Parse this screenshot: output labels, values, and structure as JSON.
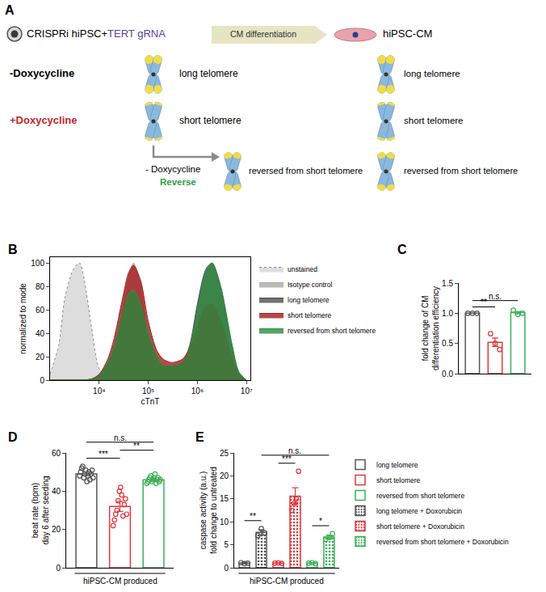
{
  "diagram": {
    "panel": "A",
    "header": {
      "cell": "CRISPRi hiPSC+",
      "grna": "TERT gRNA",
      "process": "CM differentiation",
      "product": "hiPSC-CM"
    },
    "rows": [
      {
        "condition": "-Doxycycline",
        "ipsc": "long telomere",
        "cm": "long telomere"
      },
      {
        "condition": "+Doxycycline",
        "ipsc": "short telomere",
        "cm": "short telomere"
      },
      {
        "condition": "- Doxycycline",
        "note": "Reverse",
        "ipsc": "reversed from short telomere",
        "cm": "reversed from short telomere"
      }
    ]
  },
  "chart_data": [
    {
      "panel": "B",
      "type": "area",
      "log": "x",
      "grid": false,
      "legend": "right",
      "x_label": "cTnT",
      "y_label": "normalized to mode",
      "x": [
        1000,
        1500,
        2000,
        3000,
        4000,
        5000,
        7000,
        10000,
        15000,
        20000,
        30000,
        40000,
        50000,
        70000,
        100000,
        150000,
        200000,
        300000,
        500000,
        700000,
        1000000,
        1500000,
        2000000,
        3000000,
        5000000,
        7000000,
        10000000
      ],
      "series": [
        {
          "name": "unstained",
          "color": "#d4d4d4",
          "line_style": "dotted",
          "values": [
            5,
            30,
            70,
            95,
            100,
            85,
            45,
            10,
            2,
            0,
            0,
            0,
            0,
            0,
            0,
            0,
            0,
            0,
            0,
            0,
            0,
            0,
            0,
            0,
            0,
            0,
            0
          ]
        },
        {
          "name": "Isotype control",
          "color": "#a9a9a9",
          "values": [
            0,
            0,
            0,
            0,
            0,
            0,
            0,
            2,
            10,
            25,
            60,
            88,
            100,
            80,
            35,
            8,
            2,
            0,
            0,
            0,
            0,
            0,
            0,
            0,
            0,
            0,
            0
          ]
        },
        {
          "name": "long telomere",
          "color": "#4d4d4d",
          "values": [
            0,
            0,
            0,
            0,
            0,
            0,
            1,
            4,
            14,
            27,
            55,
            72,
            75,
            63,
            38,
            18,
            12,
            12,
            15,
            30,
            65,
            95,
            100,
            78,
            30,
            6,
            0
          ]
        },
        {
          "name": "short telomere",
          "color": "#a81c1c",
          "values": [
            0,
            0,
            0,
            0,
            0,
            0,
            1,
            5,
            18,
            35,
            70,
            92,
            98,
            85,
            50,
            25,
            18,
            15,
            18,
            28,
            45,
            63,
            65,
            50,
            20,
            5,
            0
          ]
        },
        {
          "name": "reversed from short telomere",
          "color": "#2e8b40",
          "values": [
            0,
            0,
            0,
            0,
            0,
            0,
            1,
            4,
            15,
            28,
            57,
            74,
            77,
            65,
            40,
            20,
            13,
            12,
            15,
            28,
            60,
            92,
            100,
            80,
            32,
            7,
            0
          ]
        }
      ],
      "xlim": [
        1000,
        12000000
      ],
      "xticks": [
        {
          "value": 10000,
          "label": "10⁴"
        },
        {
          "value": 100000,
          "label": "10⁵"
        },
        {
          "value": 1000000,
          "label": "10⁶"
        },
        {
          "value": 10000000,
          "label": "10⁷"
        }
      ],
      "ylim": [
        0,
        105
      ],
      "yticks": [
        0,
        20,
        40,
        60,
        80,
        100
      ]
    },
    {
      "panel": "C",
      "type": "bar",
      "grid": false,
      "y_label": "fold change of CM\ndifferentiation efficiency",
      "categories": [
        null,
        null,
        null
      ],
      "values": [
        1.0,
        0.52,
        1.01
      ],
      "errors": [
        0,
        0.07,
        0.02
      ],
      "points": [
        [
          1.0,
          1.0,
          1.0
        ],
        [
          0.66,
          0.5,
          0.4
        ],
        [
          1.05,
          0.98,
          1.0
        ]
      ],
      "colors": [
        "#555555",
        "#e0393e",
        "#3fae5a"
      ],
      "ylim": [
        0,
        1.5
      ],
      "yticks": [
        {
          "value": 0,
          "label": "0.0"
        },
        {
          "value": 0.5,
          "label": "0.5"
        },
        {
          "value": 1,
          "label": "1.0"
        },
        {
          "value": 1.5,
          "label": "1.5"
        }
      ],
      "annotations": [
        {
          "from": 0,
          "to": 1,
          "text": "**"
        },
        {
          "from": 0,
          "to": 2,
          "text": "n.s."
        }
      ]
    },
    {
      "panel": "D",
      "type": "bar",
      "grid": false,
      "y_label": "beat rate (bpm)\nday 6 after seeding",
      "x_label": "hiPSC-CM produced",
      "categories": [
        null,
        null,
        null
      ],
      "values": [
        49,
        32,
        46
      ],
      "errors": [
        1,
        2.6,
        0.7
      ],
      "points": [
        [
          48,
          50,
          52,
          53,
          47,
          49,
          51,
          45,
          48,
          50,
          46,
          49,
          51,
          47
        ],
        [
          22,
          25,
          28,
          30,
          35,
          40,
          42,
          38,
          27,
          33,
          36,
          28
        ],
        [
          44,
          45,
          46,
          47,
          48,
          45,
          46,
          47,
          49,
          44,
          46,
          47,
          45,
          46
        ]
      ],
      "colors": [
        "#555555",
        "#e0393e",
        "#3fae5a"
      ],
      "ylim": [
        0,
        60
      ],
      "yticks": [
        0,
        20,
        40,
        60
      ],
      "annotations": [
        {
          "from": 0,
          "to": 1,
          "text": "***"
        },
        {
          "from": 1,
          "to": 2,
          "text": "**"
        },
        {
          "from": 0,
          "to": 2,
          "text": "n.s."
        }
      ]
    },
    {
      "panel": "E",
      "type": "bar",
      "grid": false,
      "legend": "right",
      "y_label": "caspase activity (a.u.)\nfold change to untreated",
      "x_label": "hiPSC-CM produced",
      "categories": [
        null,
        null,
        null,
        null,
        null,
        null
      ],
      "series": [
        {
          "name": "long telomere",
          "color": "#555555",
          "values": [
            1.0,
            null,
            null,
            null,
            null,
            null
          ],
          "errors": [
            0.15,
            null,
            null,
            null,
            null,
            null
          ],
          "points": [
            [
              1.1,
              0.9,
              1.0
            ],
            [],
            [],
            [],
            [],
            []
          ]
        },
        {
          "name": "short telomere",
          "color": "#e0393e",
          "values": [
            null,
            null,
            1.0,
            null,
            null,
            null
          ],
          "errors": [
            null,
            null,
            0.05,
            null,
            null,
            null
          ],
          "points": [
            [],
            [],
            [
              1.0,
              1.05,
              0.95
            ],
            [],
            [],
            []
          ]
        },
        {
          "name": "reversed from short telomere",
          "color": "#3fae5a",
          "values": [
            null,
            null,
            null,
            null,
            1.0,
            null
          ],
          "errors": [
            null,
            null,
            null,
            null,
            0.08,
            null
          ],
          "points": [
            [],
            [],
            [],
            [],
            [
              1.0,
              1.1,
              0.9
            ],
            []
          ]
        },
        {
          "name": "long telomere + Doxorubicin",
          "color": "#555555",
          "marker": "dots",
          "values": [
            null,
            7.7,
            null,
            null,
            null,
            null
          ],
          "errors": [
            null,
            0.6,
            null,
            null,
            null,
            null
          ],
          "points": [
            [],
            [
              7.0,
              8.5,
              7.6
            ],
            [],
            [],
            [],
            []
          ]
        },
        {
          "name": "short telomere + Doxorubicin",
          "color": "#e0393e",
          "marker": "dots",
          "values": [
            null,
            null,
            null,
            15.6,
            null,
            null
          ],
          "errors": [
            null,
            null,
            null,
            1.8,
            null,
            null
          ],
          "points": [
            [],
            [],
            [],
            [
              12.5,
              14,
              15,
              21
            ],
            [],
            []
          ]
        },
        {
          "name": "reversed from short telomere + Doxorubicin",
          "color": "#3fae5a",
          "marker": "dots",
          "values": [
            null,
            null,
            null,
            null,
            null,
            6.7
          ],
          "errors": [
            null,
            null,
            null,
            null,
            null,
            0.4
          ],
          "points": [
            [],
            [],
            [],
            [],
            [],
            [
              6.2,
              6.6,
              7.4
            ]
          ]
        }
      ],
      "ylim": [
        0,
        25
      ],
      "yticks": [
        0,
        5,
        10,
        15,
        20,
        25
      ],
      "annotations": [
        {
          "from": 0,
          "to": 1,
          "text": "**"
        },
        {
          "from": 2,
          "to": 3,
          "text": "***"
        },
        {
          "from": 4,
          "to": 5,
          "text": "*"
        },
        {
          "from": 1,
          "to": 5,
          "text": "n.s."
        }
      ]
    }
  ]
}
